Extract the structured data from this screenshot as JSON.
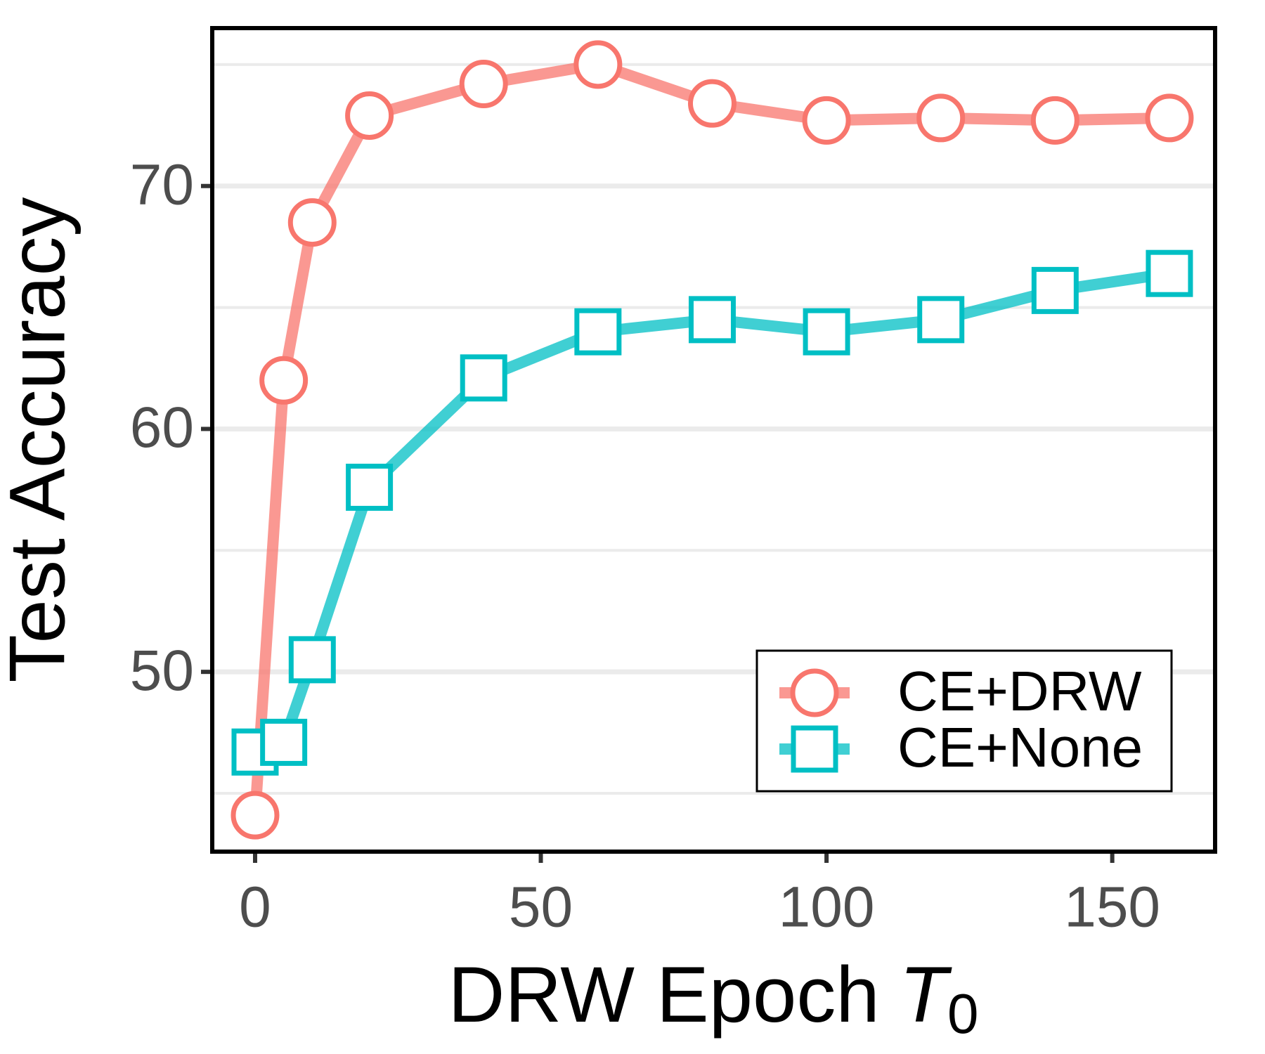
{
  "chart_data": {
    "type": "line",
    "ylabel": "Test Accuracy",
    "xlabel": "DRW Epoch",
    "xlabel_symbol": "T",
    "xlabel_subscript": "0",
    "x": [
      0,
      5,
      10,
      20,
      40,
      60,
      80,
      100,
      120,
      140,
      160
    ],
    "series": [
      {
        "name": "CE+DRW",
        "color": "#F8766D",
        "marker": "circle",
        "values": [
          44.1,
          62.0,
          68.5,
          72.9,
          74.2,
          75.0,
          73.4,
          72.7,
          72.8,
          72.7,
          72.8
        ]
      },
      {
        "name": "CE+None",
        "color": "#00BFC4",
        "marker": "square",
        "values": [
          46.7,
          47.1,
          50.5,
          57.6,
          62.1,
          64.0,
          64.5,
          64.0,
          64.5,
          65.7,
          66.4
        ]
      }
    ],
    "xlim": [
      -7.5,
      168
    ],
    "xticks": [
      0,
      50,
      100,
      150
    ],
    "ylim": [
      42.6,
      76.5
    ],
    "yticks": [
      50,
      60,
      70
    ],
    "yticks_minor": [
      45,
      55,
      65,
      75
    ],
    "grid": true,
    "legend": "bottom right"
  }
}
